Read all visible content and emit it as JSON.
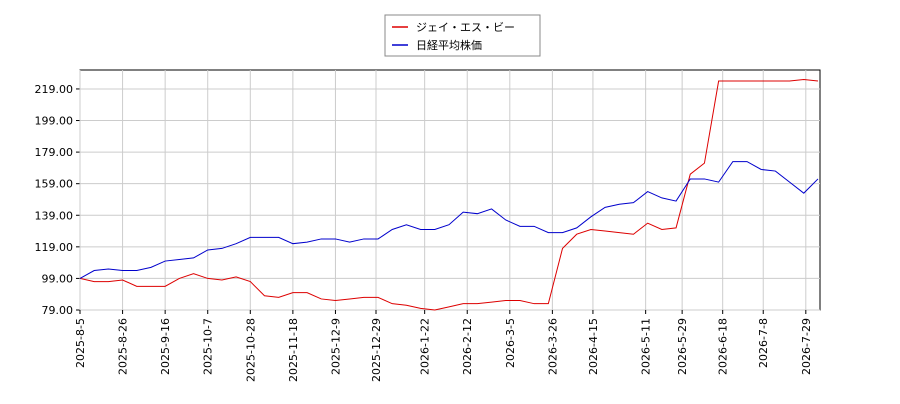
{
  "chart_data": {
    "type": "line",
    "x": [
      "2025-8-5",
      "2025-8-12",
      "2025-8-19",
      "2025-8-26",
      "2025-9-2",
      "2025-9-9",
      "2025-9-16",
      "2025-9-23",
      "2025-9-30",
      "2025-10-7",
      "2025-10-14",
      "2025-10-21",
      "2025-10-28",
      "2025-11-4",
      "2025-11-11",
      "2025-11-18",
      "2025-11-25",
      "2025-12-2",
      "2025-12-9",
      "2025-12-16",
      "2025-12-23",
      "2025-12-30",
      "2026-1-6",
      "2026-1-13",
      "2026-1-20",
      "2026-1-27",
      "2026-2-3",
      "2026-2-10",
      "2026-2-17",
      "2026-2-24",
      "2026-3-3",
      "2026-3-10",
      "2026-3-17",
      "2026-3-24",
      "2026-3-31",
      "2026-4-7",
      "2026-4-14",
      "2026-4-21",
      "2026-4-28",
      "2026-5-5",
      "2026-5-12",
      "2026-5-19",
      "2026-5-26",
      "2026-6-2",
      "2026-6-9",
      "2026-6-16",
      "2026-6-23",
      "2026-6-30",
      "2026-7-7",
      "2026-7-14",
      "2026-7-21",
      "2026-7-28",
      "2026-8-4"
    ],
    "series": [
      {
        "name": "ジェイ・エス・ビー",
        "color": "#dd0000",
        "values": [
          99,
          97,
          97,
          98,
          94,
          94,
          94,
          99,
          102,
          99,
          98,
          100,
          97,
          88,
          87,
          90,
          90,
          86,
          85,
          86,
          87,
          87,
          83,
          82,
          80,
          79,
          81,
          83,
          83,
          84,
          85,
          85,
          83,
          83,
          118,
          127,
          130,
          129,
          128,
          127,
          134,
          130,
          131,
          165,
          172,
          224,
          224,
          224,
          224,
          224,
          224,
          225,
          224
        ]
      },
      {
        "name": "日経平均株価",
        "color": "#0000cc",
        "values": [
          99,
          104,
          105,
          104,
          104,
          106,
          110,
          111,
          112,
          117,
          118,
          121,
          125,
          125,
          125,
          121,
          122,
          124,
          124,
          122,
          124,
          124,
          130,
          133,
          130,
          130,
          133,
          141,
          140,
          143,
          136,
          132,
          132,
          128,
          128,
          131,
          138,
          144,
          146,
          147,
          154,
          150,
          148,
          162,
          162,
          160,
          173,
          173,
          168,
          167,
          160,
          153,
          162
        ]
      }
    ],
    "xlim": [
      "2025-8-5",
      "2026-8-5"
    ],
    "xticks": [
      "2025-8-5",
      "2025-8-26",
      "2025-9-16",
      "2025-10-7",
      "2025-10-28",
      "2025-11-18",
      "2025-12-9",
      "2025-12-29",
      "2026-1-22",
      "2026-2-12",
      "2026-3-5",
      "2026-3-26",
      "2026-4-15",
      "2026-5-11",
      "2026-5-29",
      "2026-6-18",
      "2026-7-8",
      "2026-7-29"
    ],
    "ylim": [
      79,
      231
    ],
    "yticks": [
      {
        "value": 79,
        "label": "79.00"
      },
      {
        "value": 99,
        "label": "99.00"
      },
      {
        "value": 119,
        "label": "119.00"
      },
      {
        "value": 139,
        "label": "139.00"
      },
      {
        "value": 159,
        "label": "159.00"
      },
      {
        "value": 179,
        "label": "179.00"
      },
      {
        "value": 199,
        "label": "199.00"
      },
      {
        "value": 219,
        "label": "219.00"
      }
    ],
    "grid": true
  }
}
